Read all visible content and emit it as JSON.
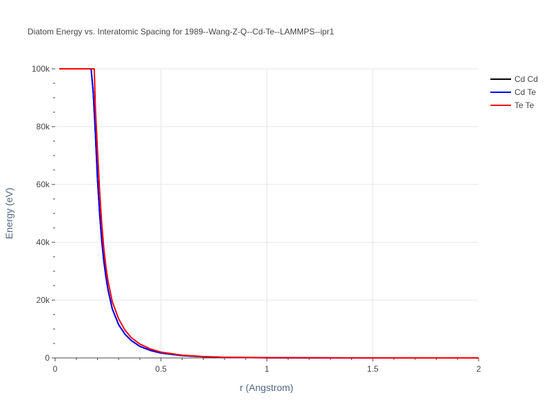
{
  "chart_data": {
    "type": "line",
    "title": "Diatom Energy vs. Interatomic Spacing for 1989--Wang-Z-Q--Cd-Te--LAMMPS--ipr1",
    "xlabel": "r (Angstrom)",
    "ylabel": "Energy (eV)",
    "xlim": [
      0,
      2
    ],
    "ylim": [
      0,
      100000
    ],
    "x_ticks": [
      {
        "value": 0,
        "label": "0"
      },
      {
        "value": 0.5,
        "label": "0.5"
      },
      {
        "value": 1,
        "label": "1"
      },
      {
        "value": 1.5,
        "label": "1.5"
      },
      {
        "value": 2,
        "label": "2"
      }
    ],
    "y_ticks": [
      {
        "value": 0,
        "label": "0"
      },
      {
        "value": 20000,
        "label": "20k"
      },
      {
        "value": 40000,
        "label": "40k"
      },
      {
        "value": 60000,
        "label": "60k"
      },
      {
        "value": 80000,
        "label": "80k"
      },
      {
        "value": 100000,
        "label": "100k"
      }
    ],
    "grid": true,
    "legend_position": "top-right",
    "series": [
      {
        "name": "Cd Cd",
        "color": "#000000",
        "x": [
          0.02,
          0.17,
          0.18,
          0.19,
          0.2,
          0.21,
          0.22,
          0.23,
          0.24,
          0.25,
          0.27,
          0.3,
          0.33,
          0.36,
          0.4,
          0.45,
          0.5,
          0.6,
          0.7,
          0.8,
          1.0,
          1.2,
          1.5,
          2.0
        ],
        "y": [
          100000,
          100000,
          92000,
          78000,
          62000,
          50000,
          40500,
          33500,
          28000,
          23500,
          17000,
          11500,
          8200,
          6000,
          4000,
          2600,
          1700,
          800,
          400,
          200,
          80,
          30,
          10,
          0
        ]
      },
      {
        "name": "Cd Te",
        "color": "#0000ff",
        "x": [
          0.02,
          0.17,
          0.18,
          0.19,
          0.2,
          0.21,
          0.22,
          0.23,
          0.24,
          0.25,
          0.27,
          0.3,
          0.33,
          0.36,
          0.4,
          0.45,
          0.5,
          0.6,
          0.7,
          0.8,
          1.0,
          1.2,
          1.5,
          2.0
        ],
        "y": [
          100000,
          100000,
          92000,
          78000,
          62000,
          50000,
          40500,
          33500,
          28000,
          23500,
          17000,
          11500,
          8200,
          6000,
          4000,
          2600,
          1700,
          800,
          400,
          200,
          80,
          30,
          10,
          0
        ]
      },
      {
        "name": "Te Te",
        "color": "#ff0000",
        "x": [
          0.02,
          0.185,
          0.19,
          0.2,
          0.21,
          0.22,
          0.23,
          0.24,
          0.25,
          0.27,
          0.3,
          0.33,
          0.36,
          0.4,
          0.45,
          0.5,
          0.6,
          0.7,
          0.8,
          1.0,
          1.2,
          1.5,
          2.0
        ],
        "y": [
          100000,
          100000,
          87000,
          72000,
          58000,
          46500,
          38000,
          31500,
          26500,
          19500,
          13500,
          9600,
          7000,
          4800,
          3100,
          2000,
          950,
          480,
          250,
          100,
          40,
          12,
          0
        ]
      }
    ]
  }
}
